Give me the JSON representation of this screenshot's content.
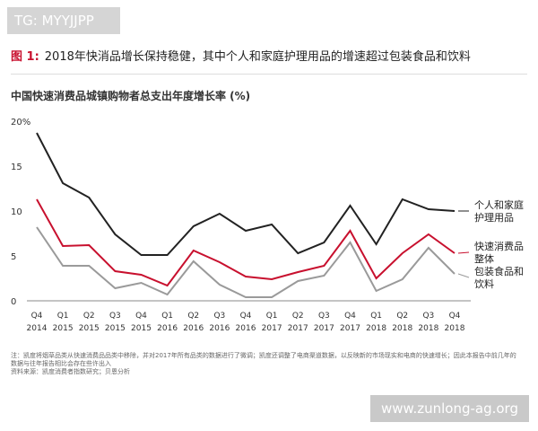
{
  "watermark": "TG: MYYJJPP",
  "chart_data": {
    "type": "line",
    "figure_label": "图 1:",
    "title": "2018年快消品增长保持稳健，其中个人和家庭护理用品的增速超过包装食品和饮料",
    "subtitle": "中国快速消费品城镇购物者总支出年度增长率 (%)",
    "categories": [
      [
        "Q4",
        "2014"
      ],
      [
        "Q1",
        "2015"
      ],
      [
        "Q2",
        "2015"
      ],
      [
        "Q3",
        "2015"
      ],
      [
        "Q4",
        "2015"
      ],
      [
        "Q1",
        "2016"
      ],
      [
        "Q2",
        "2016"
      ],
      [
        "Q3",
        "2016"
      ],
      [
        "Q4",
        "2016"
      ],
      [
        "Q1",
        "2017"
      ],
      [
        "Q2",
        "2017"
      ],
      [
        "Q3",
        "2017"
      ],
      [
        "Q4",
        "2017"
      ],
      [
        "Q1",
        "2018"
      ],
      [
        "Q2",
        "2018"
      ],
      [
        "Q3",
        "2018"
      ],
      [
        "Q4",
        "2018"
      ]
    ],
    "series": [
      {
        "name": "个人和家庭护理用品",
        "color": "#222222",
        "values": [
          18.7,
          13.1,
          11.5,
          7.4,
          5.1,
          5.1,
          8.3,
          9.7,
          7.8,
          8.5,
          5.3,
          6.5,
          10.6,
          6.3,
          11.3,
          10.2,
          10.0
        ]
      },
      {
        "name": "快速消费品整体",
        "color": "#c8102e",
        "values": [
          11.3,
          6.1,
          6.2,
          3.3,
          2.9,
          1.7,
          5.6,
          4.3,
          2.7,
          2.4,
          3.2,
          3.9,
          7.8,
          2.5,
          5.3,
          7.4,
          5.3
        ]
      },
      {
        "name": "包装食品和饮料",
        "color": "#9a9a9a",
        "values": [
          8.2,
          3.9,
          3.9,
          1.4,
          2.0,
          0.7,
          4.4,
          1.8,
          0.4,
          0.4,
          2.2,
          2.8,
          6.5,
          1.1,
          2.4,
          5.9,
          3.0
        ]
      }
    ],
    "ylim": [
      0,
      20
    ],
    "yticks": [
      0,
      5,
      10,
      15,
      {
        "value": 20,
        "label": "20%"
      }
    ],
    "grid": false
  },
  "footnote": "注：凯度将烟草品类从快速消费品品类中移除，并对2017年所有品类的数据进行了微调；凯度还调整了电商渠道数据，以反映新的市场现实和电商的快速增长；因此本报告中前几年的数据与往年报告相比会存在些许出入",
  "source": "资料来源：凯度消费者指数研究；贝恩分析",
  "site": "www.zunlong-ag.org"
}
